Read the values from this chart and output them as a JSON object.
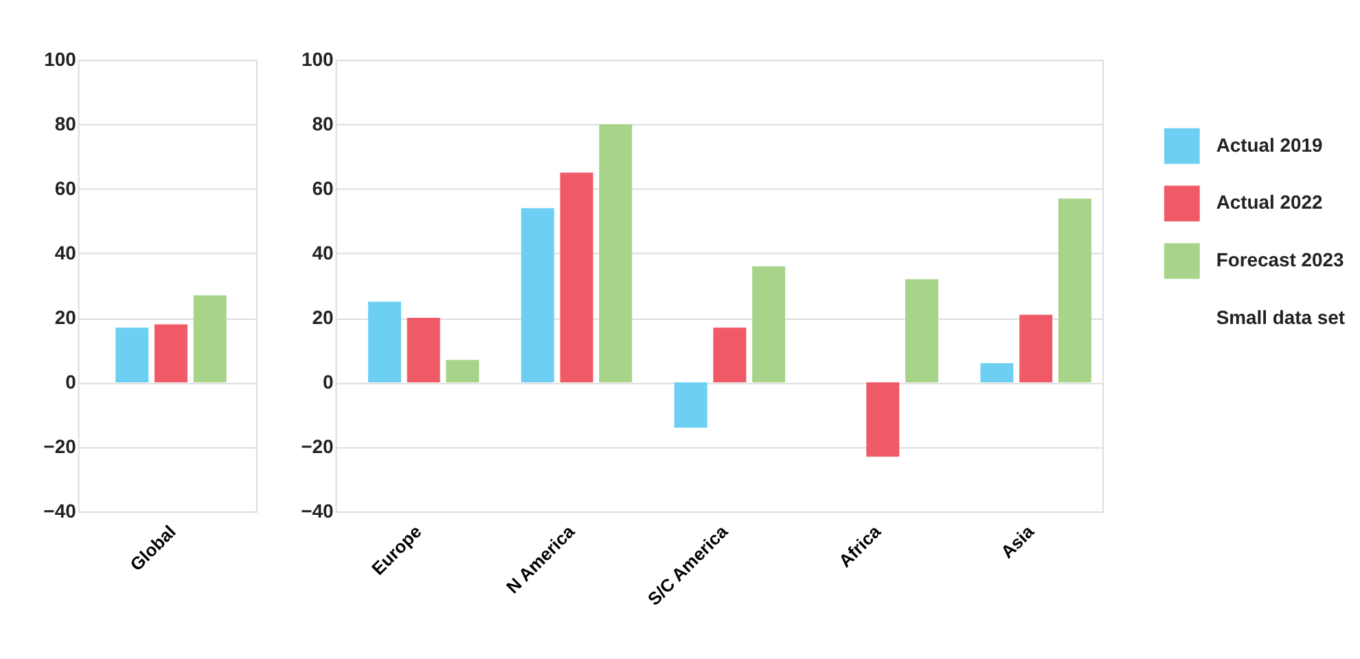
{
  "chart_data": [
    {
      "type": "bar",
      "categories": [
        "Global"
      ],
      "series": [
        {
          "color": "#6dd0f3",
          "values": [
            17
          ]
        },
        {
          "color": "#f05a66",
          "values": [
            18
          ]
        },
        {
          "color": "#a8d48a",
          "values": [
            27
          ]
        }
      ],
      "ylim": [
        -40,
        100
      ],
      "yticks": [
        -40,
        -20,
        0,
        20,
        40,
        60,
        80,
        100
      ],
      "grid": "y",
      "legend": false
    },
    {
      "type": "bar",
      "categories": [
        "Europe",
        "N America",
        "S/C America",
        "Africa",
        "Asia"
      ],
      "series": [
        {
          "name": "Actual 2019",
          "color": "#6dd0f3",
          "values": [
            25,
            54,
            -14,
            null,
            6
          ]
        },
        {
          "name": "Actual 2022",
          "color": "#f05a66",
          "values": [
            20,
            65,
            17,
            -23,
            21
          ]
        },
        {
          "name": "Forecast 2023",
          "color": "#a8d48a",
          "values": [
            7,
            80,
            36,
            32,
            57
          ]
        }
      ],
      "ylim": [
        -40,
        100
      ],
      "yticks": [
        -40,
        -20,
        0,
        20,
        40,
        60,
        80,
        100
      ],
      "grid": "y",
      "legend": "right",
      "annotations": [
        "Small data set"
      ]
    }
  ]
}
